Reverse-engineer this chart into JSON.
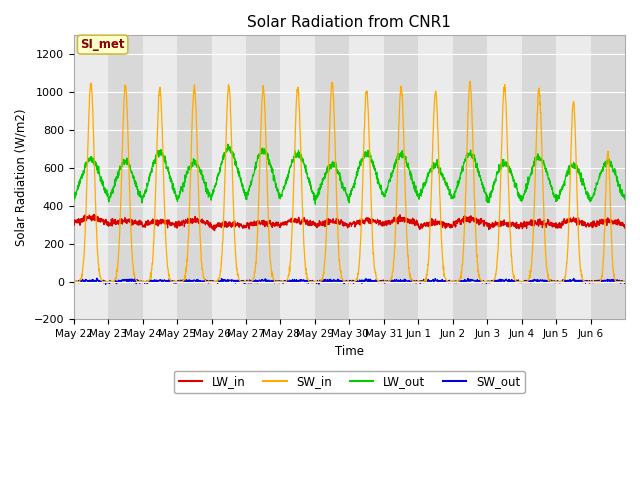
{
  "title": "Solar Radiation from CNR1",
  "xlabel": "Time",
  "ylabel": "Solar Radiation (W/m2)",
  "ylim": [
    -200,
    1300
  ],
  "yticks": [
    -200,
    0,
    200,
    400,
    600,
    800,
    1000,
    1200
  ],
  "background_color": "#ffffff",
  "plot_bg_color": "#e8e8e8",
  "annotation_label": "SI_met",
  "annotation_color": "#8B0000",
  "annotation_bg": "#ffffcc",
  "annotation_border": "#ccbb44",
  "legend_entries": [
    "LW_in",
    "SW_in",
    "LW_out",
    "SW_out"
  ],
  "line_colors": {
    "LW_in": "#dd0000",
    "SW_in": "#ffaa00",
    "LW_out": "#00cc00",
    "SW_out": "#0000dd"
  },
  "num_days": 16,
  "date_labels": [
    "May 22",
    "May 23",
    "May 24",
    "May 25",
    "May 26",
    "May 27",
    "May 28",
    "May 29",
    "May 30",
    "May 31",
    "Jun 1",
    "Jun 2",
    "Jun 3",
    "Jun 4",
    "Jun 5",
    "Jun 6"
  ],
  "gray_band_color": "#d8d8d8",
  "white_band_color": "#ebebeb"
}
